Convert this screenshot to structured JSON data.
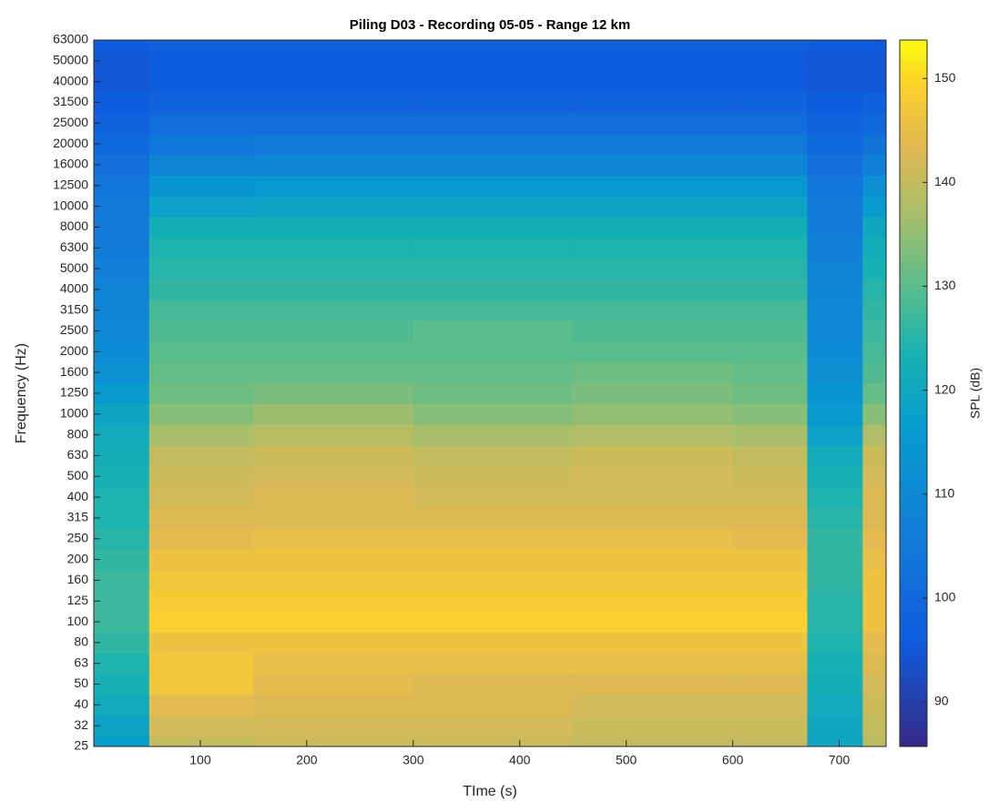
{
  "chart_data": {
    "type": "spectrogram",
    "title": "Piling D03 - Recording 05-05 - Range 12 km",
    "xlabel": "TIme (s)",
    "ylabel": "Frequency (Hz)",
    "colorbar_label": "SPL (dB)",
    "colormap": "parula",
    "x_bins": [
      0,
      52,
      150,
      300,
      450,
      600,
      670,
      722,
      744
    ],
    "xlim": [
      0,
      744
    ],
    "xticks": [
      100,
      200,
      300,
      400,
      500,
      600,
      700
    ],
    "categories": [
      "25",
      "32",
      "40",
      "50",
      "63",
      "80",
      "100",
      "125",
      "160",
      "200",
      "250",
      "315",
      "400",
      "500",
      "630",
      "800",
      "1000",
      "1250",
      "1600",
      "2000",
      "2500",
      "3150",
      "4000",
      "5000",
      "6300",
      "8000",
      "10000",
      "12500",
      "16000",
      "20000",
      "25000",
      "31500",
      "40000",
      "50000",
      "63000"
    ],
    "clim": [
      85.7,
      153.7
    ],
    "cticks": [
      90,
      100,
      110,
      120,
      130,
      140,
      150
    ],
    "values": [
      [
        117,
        140,
        141,
        141,
        140,
        140,
        119,
        139
      ],
      [
        119,
        142,
        142,
        142,
        141,
        141,
        120,
        140
      ],
      [
        121,
        144,
        143,
        143,
        142,
        142,
        121,
        141
      ],
      [
        123,
        147,
        144,
        143,
        143,
        143,
        122,
        142
      ],
      [
        124,
        147,
        145,
        145,
        145,
        145,
        123,
        143
      ],
      [
        126,
        146,
        146,
        146,
        146,
        146,
        124,
        144
      ],
      [
        127,
        149,
        149,
        149,
        149,
        149,
        125,
        146
      ],
      [
        127,
        148,
        148,
        148,
        148,
        148,
        125,
        146
      ],
      [
        127,
        147,
        147,
        147,
        147,
        147,
        126,
        146
      ],
      [
        126,
        146,
        146,
        146,
        146,
        146,
        126,
        145
      ],
      [
        125,
        144,
        145,
        145,
        145,
        144,
        126,
        144
      ],
      [
        124,
        143,
        143,
        143,
        143,
        143,
        125,
        143
      ],
      [
        124,
        142,
        143,
        142,
        142,
        142,
        124,
        143
      ],
      [
        123,
        141,
        142,
        141,
        142,
        141,
        123,
        142
      ],
      [
        122,
        140,
        141,
        140,
        141,
        140,
        121,
        141
      ],
      [
        121,
        137,
        139,
        137,
        138,
        137,
        118,
        138
      ],
      [
        119,
        134,
        136,
        134,
        135,
        134,
        116,
        134
      ],
      [
        116,
        132,
        133,
        132,
        133,
        132,
        114,
        131
      ],
      [
        113,
        131,
        131,
        131,
        132,
        131,
        112,
        129
      ],
      [
        111,
        130,
        130,
        130,
        130,
        130,
        111,
        128
      ],
      [
        110,
        129,
        129,
        130,
        129,
        129,
        110,
        127
      ],
      [
        109,
        128,
        128,
        128,
        128,
        128,
        110,
        126
      ],
      [
        108,
        126,
        126,
        126,
        126,
        126,
        109,
        125
      ],
      [
        107,
        125,
        125,
        125,
        125,
        125,
        108,
        123
      ],
      [
        106,
        124,
        124,
        124,
        124,
        124,
        107,
        122
      ],
      [
        106,
        122,
        122,
        122,
        122,
        122,
        106,
        120
      ],
      [
        105,
        118,
        119,
        119,
        119,
        119,
        105,
        116
      ],
      [
        104,
        114,
        115,
        115,
        115,
        115,
        104,
        112
      ],
      [
        102,
        108,
        109,
        109,
        109,
        109,
        102,
        107
      ],
      [
        100,
        104,
        105,
        105,
        105,
        105,
        100,
        103
      ],
      [
        98,
        101,
        101,
        101,
        101,
        101,
        98,
        100
      ],
      [
        96,
        98,
        98,
        98,
        98,
        98,
        96,
        97
      ],
      [
        95,
        96,
        96,
        96,
        96,
        96,
        95,
        95
      ],
      [
        95,
        96,
        96,
        96,
        96,
        96,
        95,
        95
      ],
      [
        96,
        97,
        97,
        97,
        97,
        97,
        96,
        96
      ]
    ]
  }
}
